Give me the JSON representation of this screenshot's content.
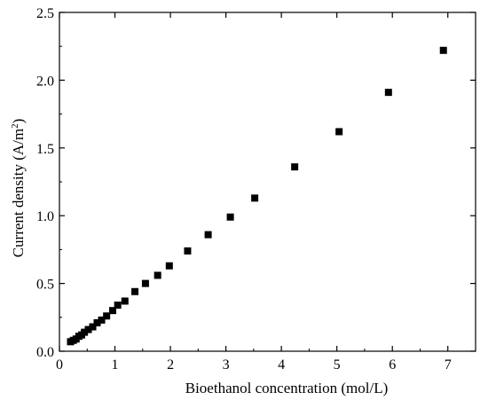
{
  "chart_data": {
    "type": "scatter",
    "title": "",
    "xlabel": "Bioethanol concentration (mol/L)",
    "ylabel_main": "Current density (A/m",
    "ylabel_sup": "2",
    "ylabel_close": ")",
    "xlim": [
      0,
      7.5
    ],
    "ylim": [
      0,
      2.5
    ],
    "x_ticks": [
      0,
      1,
      2,
      3,
      4,
      5,
      6,
      7
    ],
    "y_ticks": [
      0.0,
      0.5,
      1.0,
      1.5,
      2.0,
      2.5
    ],
    "x_tick_labels": [
      "0",
      "1",
      "2",
      "3",
      "4",
      "5",
      "6",
      "7"
    ],
    "y_tick_labels": [
      "0.0",
      "0.5",
      "1.0",
      "1.5",
      "2.0",
      "2.5"
    ],
    "marker": "square",
    "marker_color": "#000000",
    "grid": false,
    "legend": "none",
    "points": [
      {
        "x": 0.2,
        "y": 0.07
      },
      {
        "x": 0.25,
        "y": 0.08
      },
      {
        "x": 0.3,
        "y": 0.09
      },
      {
        "x": 0.35,
        "y": 0.11
      },
      {
        "x": 0.4,
        "y": 0.12
      },
      {
        "x": 0.45,
        "y": 0.14
      },
      {
        "x": 0.52,
        "y": 0.16
      },
      {
        "x": 0.6,
        "y": 0.18
      },
      {
        "x": 0.68,
        "y": 0.21
      },
      {
        "x": 0.76,
        "y": 0.23
      },
      {
        "x": 0.85,
        "y": 0.26
      },
      {
        "x": 0.96,
        "y": 0.3
      },
      {
        "x": 1.05,
        "y": 0.34
      },
      {
        "x": 1.18,
        "y": 0.37
      },
      {
        "x": 1.36,
        "y": 0.44
      },
      {
        "x": 1.55,
        "y": 0.5
      },
      {
        "x": 1.77,
        "y": 0.56
      },
      {
        "x": 1.98,
        "y": 0.63
      },
      {
        "x": 2.31,
        "y": 0.74
      },
      {
        "x": 2.68,
        "y": 0.86
      },
      {
        "x": 3.08,
        "y": 0.99
      },
      {
        "x": 3.52,
        "y": 1.13
      },
      {
        "x": 4.24,
        "y": 1.36
      },
      {
        "x": 5.04,
        "y": 1.62
      },
      {
        "x": 5.93,
        "y": 1.91
      },
      {
        "x": 6.92,
        "y": 2.22
      }
    ]
  }
}
